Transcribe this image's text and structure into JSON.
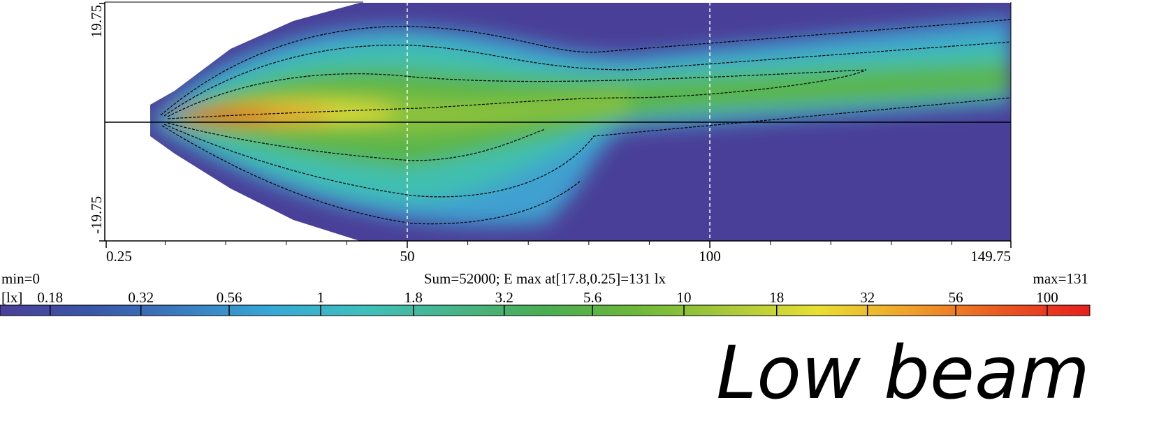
{
  "chart_data": {
    "type": "heatmap",
    "title": "Low beam",
    "xlim": [
      0.25,
      149.75
    ],
    "xticks": [
      0.25,
      50,
      100,
      149.75
    ],
    "xminorticks": [
      10,
      20,
      30,
      40,
      60,
      70,
      80,
      90,
      110,
      120,
      130,
      140
    ],
    "ylim": [
      -19.75,
      19.75
    ],
    "yticks": [
      -19.75,
      19.75
    ],
    "grid_x": [
      50,
      100
    ],
    "annotation": "Sum=52000; E max at[17.8,0.25]=131 lx",
    "colorbar": {
      "min_label": "min=0",
      "max_label": "max=131",
      "unit": "[lx]",
      "log": true,
      "clim": [
        0.131,
        131
      ],
      "ticks": [
        0.18,
        0.32,
        0.56,
        1,
        1.8,
        3.2,
        5.6,
        10,
        18,
        32,
        56,
        100
      ],
      "colors": [
        "#4a3f98",
        "#3a56a8",
        "#3b7cc0",
        "#36a9d6",
        "#3fbfbe",
        "#47b58a",
        "#4aad52",
        "#6cb83a",
        "#a8c83a",
        "#e8e032",
        "#f0a22a",
        "#ea5a20",
        "#e81e1e"
      ]
    }
  }
}
